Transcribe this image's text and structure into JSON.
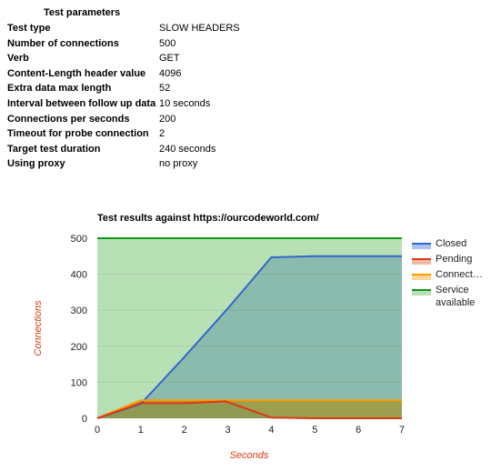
{
  "params": {
    "title": "Test parameters",
    "rows": [
      {
        "label": "Test type",
        "value": "SLOW HEADERS"
      },
      {
        "label": "Number of connections",
        "value": "500"
      },
      {
        "label": "Verb",
        "value": "GET"
      },
      {
        "label": "Content-Length header value",
        "value": "4096"
      },
      {
        "label": "Extra data max length",
        "value": "52"
      },
      {
        "label": "Interval between follow up data",
        "value": "10 seconds"
      },
      {
        "label": "Connections per seconds",
        "value": "200"
      },
      {
        "label": "Timeout for probe connection",
        "value": "2"
      },
      {
        "label": "Target test duration",
        "value": "240 seconds"
      },
      {
        "label": "Using proxy",
        "value": "no proxy"
      }
    ]
  },
  "chart_data": {
    "type": "area",
    "title": "Test results against https://ourcodeworld.com/",
    "xlabel": "Seconds",
    "ylabel": "Connections",
    "xlim": [
      0,
      7
    ],
    "ylim": [
      0,
      500
    ],
    "x_ticks": [
      0,
      1,
      2,
      3,
      4,
      5,
      6,
      7
    ],
    "y_ticks": [
      0,
      100,
      200,
      300,
      400,
      500
    ],
    "legend_position": "right",
    "series": [
      {
        "name": "Service available",
        "color": "#109618",
        "fill": "#b7e1b4",
        "points": [
          [
            0,
            500
          ],
          [
            7,
            500
          ]
        ]
      },
      {
        "name": "Closed",
        "color": "#3366cc",
        "fill": "#8bbbac",
        "points": [
          [
            0,
            0
          ],
          [
            1,
            40
          ],
          [
            2,
            170
          ],
          [
            3,
            305
          ],
          [
            4,
            447
          ],
          [
            5,
            450
          ],
          [
            6,
            450
          ],
          [
            7,
            450
          ]
        ]
      },
      {
        "name": "Connect…",
        "color": "#ff9900",
        "fill": "#9e9e4f",
        "points": [
          [
            0,
            0
          ],
          [
            1,
            50
          ],
          [
            2,
            50
          ],
          [
            3,
            50
          ],
          [
            4,
            50
          ],
          [
            5,
            50
          ],
          [
            6,
            50
          ],
          [
            7,
            50
          ]
        ]
      },
      {
        "name": "Pending",
        "color": "#dc3912",
        "fill": "#8f9a55",
        "points": [
          [
            0,
            0
          ],
          [
            1,
            42
          ],
          [
            2,
            42
          ],
          [
            2.95,
            47
          ],
          [
            4,
            2
          ],
          [
            5,
            0
          ],
          [
            6,
            0
          ],
          [
            7,
            0
          ]
        ]
      }
    ],
    "legend": [
      {
        "label": "Closed",
        "color": "#3366cc",
        "fill": "#a9c2f0"
      },
      {
        "label": "Pending",
        "color": "#dc3912",
        "fill": "#f5b8a6"
      },
      {
        "label": "Connect…",
        "color": "#ff9900",
        "fill": "#ffd699"
      },
      {
        "label": "Service",
        "label2": "available",
        "color": "#109618",
        "fill": "#b7e1b4"
      }
    ]
  }
}
